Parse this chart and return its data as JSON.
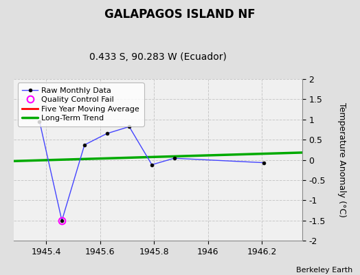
{
  "title": "GALAPAGOS ISLAND NF",
  "subtitle": "0.433 S, 90.283 W (Ecuador)",
  "ylabel": "Temperature Anomaly (°C)",
  "credit": "Berkeley Earth",
  "xlim": [
    1945.28,
    1946.35
  ],
  "ylim": [
    -2,
    2
  ],
  "yticks": [
    -2,
    -1.5,
    -1,
    -0.5,
    0,
    0.5,
    1,
    1.5,
    2
  ],
  "xticks": [
    1945.4,
    1945.6,
    1945.8,
    1946.0,
    1946.2
  ],
  "background_color": "#e0e0e0",
  "plot_bg_color": "#f0f0f0",
  "raw_x": [
    1945.375,
    1945.458,
    1945.542,
    1945.625,
    1945.708,
    1945.792,
    1945.875,
    1946.208
  ],
  "raw_y": [
    0.95,
    -1.5,
    0.37,
    0.65,
    0.82,
    -0.12,
    0.04,
    -0.07
  ],
  "qc_fail_x": [
    1945.458
  ],
  "qc_fail_y": [
    -1.5
  ],
  "trend_x": [
    1945.28,
    1946.35
  ],
  "trend_y": [
    -0.03,
    0.18
  ],
  "raw_line_color": "#4444ff",
  "raw_marker_color": "#000000",
  "qc_color": "#ff00ff",
  "five_year_color": "#ff0000",
  "trend_color": "#00aa00",
  "grid_color": "#c8c8c8",
  "title_fontsize": 12,
  "subtitle_fontsize": 10,
  "ylabel_fontsize": 9,
  "tick_fontsize": 9,
  "legend_fontsize": 8
}
